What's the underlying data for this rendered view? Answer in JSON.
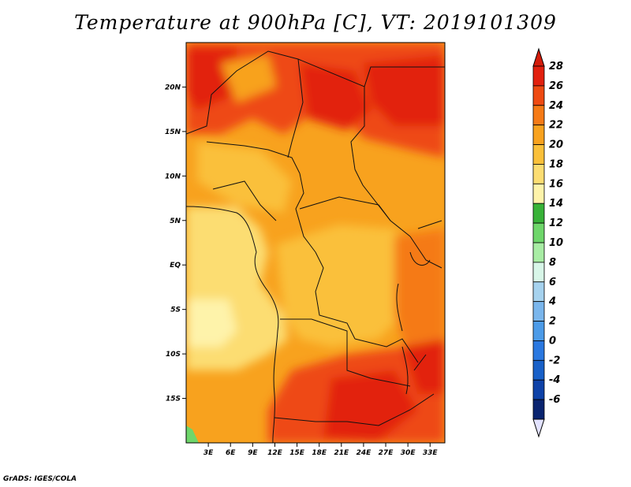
{
  "title": "Temperature at 900hPa [C], VT: 2019101309",
  "credit": "GrADS: IGES/COLA",
  "map": {
    "lon_range": [
      0,
      35
    ],
    "lat_range": [
      -20,
      25
    ],
    "lon_ticks": [
      "3E",
      "6E",
      "9E",
      "12E",
      "15E",
      "18E",
      "21E",
      "24E",
      "27E",
      "30E",
      "33E"
    ],
    "lat_ticks": [
      "20N",
      "15N",
      "10N",
      "5N",
      "EQ",
      "5S",
      "10S",
      "15S"
    ]
  },
  "colorbar": {
    "levels": [
      "28",
      "26",
      "24",
      "22",
      "20",
      "18",
      "16",
      "14",
      "12",
      "10",
      "8",
      "6",
      "4",
      "2",
      "0",
      "-2",
      "-4",
      "-6"
    ],
    "colors": [
      "#e2200e",
      "#ee4a12",
      "#f57a16",
      "#f8a21e",
      "#fac03a",
      "#fcdd72",
      "#fef3aa",
      "#38b238",
      "#6ed66a",
      "#a8eca4",
      "#d8f6e8",
      "#a6d2ee",
      "#7ab6ec",
      "#4c9be8",
      "#2a78e0",
      "#1860c8",
      "#0e42a8",
      "#0a2470"
    ],
    "top_color": "#d41c0a",
    "bottom_color": "#e2e2ff"
  }
}
